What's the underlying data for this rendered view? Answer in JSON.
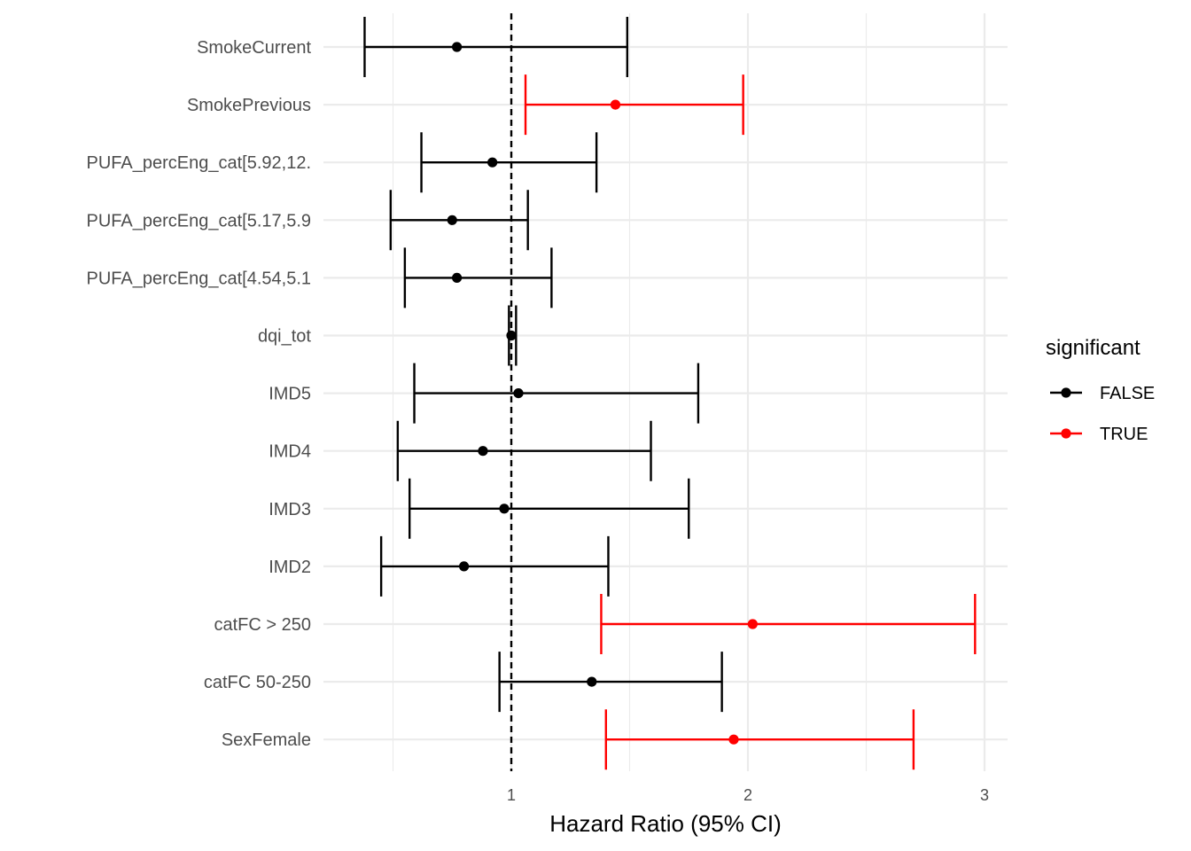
{
  "chart_data": {
    "type": "forest",
    "xlabel": "Hazard Ratio (95% CI)",
    "ylabel": "",
    "x_ticks": [
      1,
      2,
      3
    ],
    "xlim": [
      0.3,
      3.1
    ],
    "reference_line": 1,
    "grid": true,
    "legend": {
      "title": "significant",
      "position": "right",
      "entries": [
        {
          "label": "FALSE",
          "color": "#000000"
        },
        {
          "label": "TRUE",
          "color": "#ff0000"
        }
      ]
    },
    "rows": [
      {
        "label": "SmokeCurrent",
        "estimate": 0.77,
        "lower": 0.38,
        "upper": 1.49,
        "significant": false
      },
      {
        "label": "SmokePrevious",
        "estimate": 1.44,
        "lower": 1.06,
        "upper": 1.98,
        "significant": true
      },
      {
        "label": "PUFA_percEng_cat[5.92,12.",
        "estimate": 0.92,
        "lower": 0.62,
        "upper": 1.36,
        "significant": false
      },
      {
        "label": "PUFA_percEng_cat[5.17,5.9",
        "estimate": 0.75,
        "lower": 0.49,
        "upper": 1.07,
        "significant": false
      },
      {
        "label": "PUFA_percEng_cat[4.54,5.1",
        "estimate": 0.77,
        "lower": 0.55,
        "upper": 1.17,
        "significant": false
      },
      {
        "label": "dqi_tot",
        "estimate": 1.0,
        "lower": 0.99,
        "upper": 1.02,
        "significant": false
      },
      {
        "label": "IMD5",
        "estimate": 1.03,
        "lower": 0.59,
        "upper": 1.79,
        "significant": false
      },
      {
        "label": "IMD4",
        "estimate": 0.88,
        "lower": 0.52,
        "upper": 1.59,
        "significant": false
      },
      {
        "label": "IMD3",
        "estimate": 0.97,
        "lower": 0.57,
        "upper": 1.75,
        "significant": false
      },
      {
        "label": "IMD2",
        "estimate": 0.8,
        "lower": 0.45,
        "upper": 1.41,
        "significant": false
      },
      {
        "label": "catFC > 250",
        "estimate": 2.02,
        "lower": 1.38,
        "upper": 2.96,
        "significant": true
      },
      {
        "label": "catFC 50-250",
        "estimate": 1.34,
        "lower": 0.95,
        "upper": 1.89,
        "significant": false
      },
      {
        "label": "SexFemale",
        "estimate": 1.94,
        "lower": 1.4,
        "upper": 2.7,
        "significant": true
      }
    ]
  }
}
